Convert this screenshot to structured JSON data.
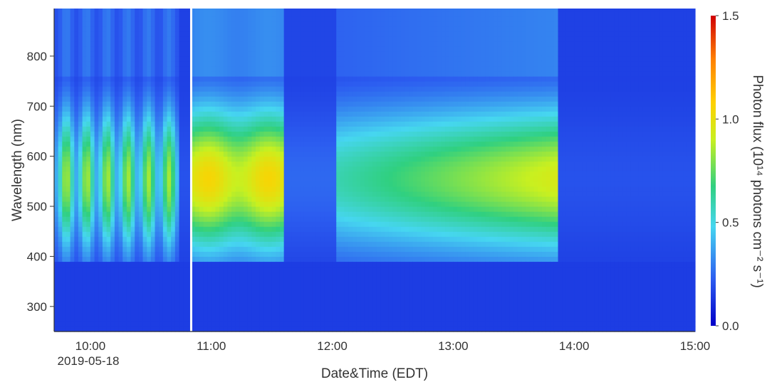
{
  "chart_data": {
    "type": "heatmap",
    "title": "",
    "xlabel": "Date&Time (EDT)",
    "ylabel": "Wavelength (nm)",
    "date_label": "2019-05-18",
    "xlim": [
      "09:42",
      "15:00"
    ],
    "ylim": [
      250,
      895
    ],
    "x_ticks": [
      "10:00",
      "11:00",
      "12:00",
      "13:00",
      "14:00",
      "15:00"
    ],
    "y_ticks": [
      300,
      400,
      500,
      600,
      700,
      800
    ],
    "colorbar": {
      "label": "Photon flux (10¹⁴ photons cm⁻² s⁻¹)",
      "min": 0.0,
      "max": 1.5,
      "ticks": [
        "0.0",
        "0.5",
        "1.0",
        "1.5"
      ],
      "colormap": "jet"
    },
    "gap_marker_time": "10:50",
    "periods": [
      {
        "start": "09:42",
        "end": "10:43",
        "pattern": "intermittent",
        "peak_flux": 0.85
      },
      {
        "start": "10:50",
        "end": "11:35",
        "pattern": "continuous",
        "peak_flux": 1.05
      },
      {
        "start": "11:35",
        "end": "12:01",
        "pattern": "low",
        "peak_flux": 0.25
      },
      {
        "start": "12:01",
        "end": "13:52",
        "pattern": "rising",
        "peak_flux": 0.95
      },
      {
        "start": "13:52",
        "end": "15:00",
        "pattern": "low",
        "peak_flux": 0.2
      }
    ]
  }
}
